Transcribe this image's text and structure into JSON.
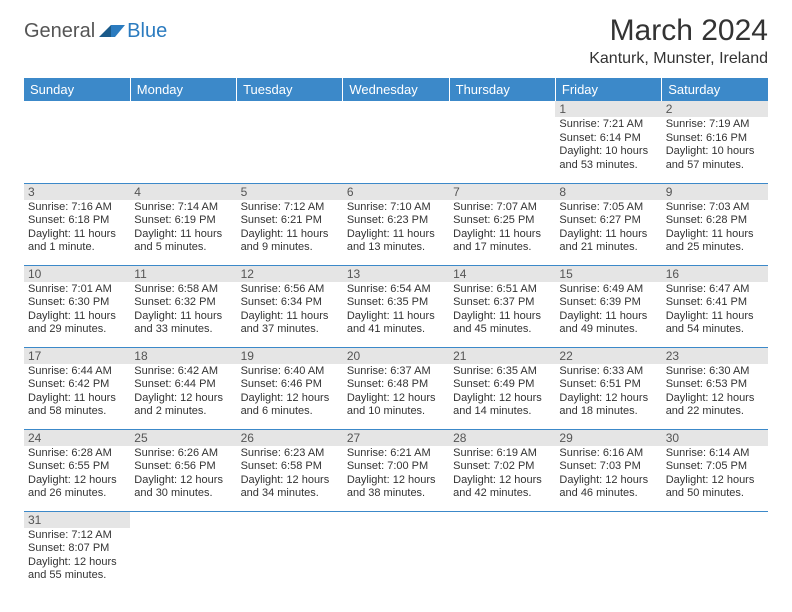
{
  "logo": {
    "general": "General",
    "blue": "Blue"
  },
  "title": "March 2024",
  "location": "Kanturk, Munster, Ireland",
  "colors": {
    "header_bg": "#3c89c9",
    "header_text": "#ffffff",
    "daynum_bg": "#e5e5e5",
    "border": "#3c89c9",
    "text": "#333333"
  },
  "weekdays": [
    "Sunday",
    "Monday",
    "Tuesday",
    "Wednesday",
    "Thursday",
    "Friday",
    "Saturday"
  ],
  "weeks": [
    [
      null,
      null,
      null,
      null,
      null,
      {
        "n": "1",
        "sr": "Sunrise: 7:21 AM",
        "ss": "Sunset: 6:14 PM",
        "dl": "Daylight: 10 hours and 53 minutes."
      },
      {
        "n": "2",
        "sr": "Sunrise: 7:19 AM",
        "ss": "Sunset: 6:16 PM",
        "dl": "Daylight: 10 hours and 57 minutes."
      }
    ],
    [
      {
        "n": "3",
        "sr": "Sunrise: 7:16 AM",
        "ss": "Sunset: 6:18 PM",
        "dl": "Daylight: 11 hours and 1 minute."
      },
      {
        "n": "4",
        "sr": "Sunrise: 7:14 AM",
        "ss": "Sunset: 6:19 PM",
        "dl": "Daylight: 11 hours and 5 minutes."
      },
      {
        "n": "5",
        "sr": "Sunrise: 7:12 AM",
        "ss": "Sunset: 6:21 PM",
        "dl": "Daylight: 11 hours and 9 minutes."
      },
      {
        "n": "6",
        "sr": "Sunrise: 7:10 AM",
        "ss": "Sunset: 6:23 PM",
        "dl": "Daylight: 11 hours and 13 minutes."
      },
      {
        "n": "7",
        "sr": "Sunrise: 7:07 AM",
        "ss": "Sunset: 6:25 PM",
        "dl": "Daylight: 11 hours and 17 minutes."
      },
      {
        "n": "8",
        "sr": "Sunrise: 7:05 AM",
        "ss": "Sunset: 6:27 PM",
        "dl": "Daylight: 11 hours and 21 minutes."
      },
      {
        "n": "9",
        "sr": "Sunrise: 7:03 AM",
        "ss": "Sunset: 6:28 PM",
        "dl": "Daylight: 11 hours and 25 minutes."
      }
    ],
    [
      {
        "n": "10",
        "sr": "Sunrise: 7:01 AM",
        "ss": "Sunset: 6:30 PM",
        "dl": "Daylight: 11 hours and 29 minutes."
      },
      {
        "n": "11",
        "sr": "Sunrise: 6:58 AM",
        "ss": "Sunset: 6:32 PM",
        "dl": "Daylight: 11 hours and 33 minutes."
      },
      {
        "n": "12",
        "sr": "Sunrise: 6:56 AM",
        "ss": "Sunset: 6:34 PM",
        "dl": "Daylight: 11 hours and 37 minutes."
      },
      {
        "n": "13",
        "sr": "Sunrise: 6:54 AM",
        "ss": "Sunset: 6:35 PM",
        "dl": "Daylight: 11 hours and 41 minutes."
      },
      {
        "n": "14",
        "sr": "Sunrise: 6:51 AM",
        "ss": "Sunset: 6:37 PM",
        "dl": "Daylight: 11 hours and 45 minutes."
      },
      {
        "n": "15",
        "sr": "Sunrise: 6:49 AM",
        "ss": "Sunset: 6:39 PM",
        "dl": "Daylight: 11 hours and 49 minutes."
      },
      {
        "n": "16",
        "sr": "Sunrise: 6:47 AM",
        "ss": "Sunset: 6:41 PM",
        "dl": "Daylight: 11 hours and 54 minutes."
      }
    ],
    [
      {
        "n": "17",
        "sr": "Sunrise: 6:44 AM",
        "ss": "Sunset: 6:42 PM",
        "dl": "Daylight: 11 hours and 58 minutes."
      },
      {
        "n": "18",
        "sr": "Sunrise: 6:42 AM",
        "ss": "Sunset: 6:44 PM",
        "dl": "Daylight: 12 hours and 2 minutes."
      },
      {
        "n": "19",
        "sr": "Sunrise: 6:40 AM",
        "ss": "Sunset: 6:46 PM",
        "dl": "Daylight: 12 hours and 6 minutes."
      },
      {
        "n": "20",
        "sr": "Sunrise: 6:37 AM",
        "ss": "Sunset: 6:48 PM",
        "dl": "Daylight: 12 hours and 10 minutes."
      },
      {
        "n": "21",
        "sr": "Sunrise: 6:35 AM",
        "ss": "Sunset: 6:49 PM",
        "dl": "Daylight: 12 hours and 14 minutes."
      },
      {
        "n": "22",
        "sr": "Sunrise: 6:33 AM",
        "ss": "Sunset: 6:51 PM",
        "dl": "Daylight: 12 hours and 18 minutes."
      },
      {
        "n": "23",
        "sr": "Sunrise: 6:30 AM",
        "ss": "Sunset: 6:53 PM",
        "dl": "Daylight: 12 hours and 22 minutes."
      }
    ],
    [
      {
        "n": "24",
        "sr": "Sunrise: 6:28 AM",
        "ss": "Sunset: 6:55 PM",
        "dl": "Daylight: 12 hours and 26 minutes."
      },
      {
        "n": "25",
        "sr": "Sunrise: 6:26 AM",
        "ss": "Sunset: 6:56 PM",
        "dl": "Daylight: 12 hours and 30 minutes."
      },
      {
        "n": "26",
        "sr": "Sunrise: 6:23 AM",
        "ss": "Sunset: 6:58 PM",
        "dl": "Daylight: 12 hours and 34 minutes."
      },
      {
        "n": "27",
        "sr": "Sunrise: 6:21 AM",
        "ss": "Sunset: 7:00 PM",
        "dl": "Daylight: 12 hours and 38 minutes."
      },
      {
        "n": "28",
        "sr": "Sunrise: 6:19 AM",
        "ss": "Sunset: 7:02 PM",
        "dl": "Daylight: 12 hours and 42 minutes."
      },
      {
        "n": "29",
        "sr": "Sunrise: 6:16 AM",
        "ss": "Sunset: 7:03 PM",
        "dl": "Daylight: 12 hours and 46 minutes."
      },
      {
        "n": "30",
        "sr": "Sunrise: 6:14 AM",
        "ss": "Sunset: 7:05 PM",
        "dl": "Daylight: 12 hours and 50 minutes."
      }
    ],
    [
      {
        "n": "31",
        "sr": "Sunrise: 7:12 AM",
        "ss": "Sunset: 8:07 PM",
        "dl": "Daylight: 12 hours and 55 minutes."
      },
      null,
      null,
      null,
      null,
      null,
      null
    ]
  ]
}
